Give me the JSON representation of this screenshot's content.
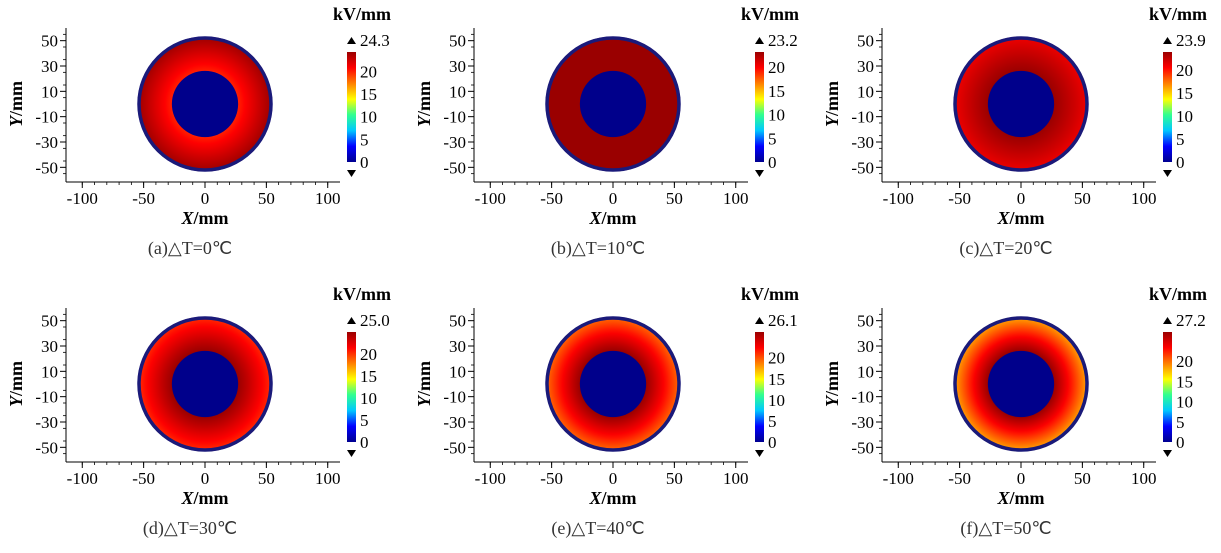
{
  "figure": {
    "unit_label": "kV/mm",
    "x_label": "X/mm",
    "y_label": "Y/mm",
    "x_ticks": [
      "-100",
      "-50",
      "0",
      "50",
      "100"
    ],
    "y_ticks": [
      "50",
      "30",
      "10",
      "-10",
      "-30",
      "-50"
    ],
    "colorbar_ticks": [
      "20",
      "15",
      "10",
      "5",
      "0"
    ],
    "colors": {
      "outline": "#1a1a7a",
      "core": "#00008b",
      "colormap": [
        "#00008f",
        "#0000ff",
        "#00c8ff",
        "#30ff90",
        "#ffff00",
        "#ff8000",
        "#ff0000",
        "#9a0000"
      ]
    }
  },
  "chart_data": [
    {
      "type": "heatmap",
      "panel": "a",
      "caption": "(a)△T=0℃",
      "max_label": "24.3",
      "max_value": 24.3,
      "field": {
        "inner_radius_mm": 27,
        "outer_radius_mm": 55,
        "inner_edge_kV_mm": 20.0,
        "outer_edge_kV_mm": 24.3
      },
      "xlim": [
        -110,
        110
      ],
      "ylim": [
        -60,
        60
      ],
      "colorbar_range": [
        0,
        24.3
      ]
    },
    {
      "type": "heatmap",
      "panel": "b",
      "caption": "(b)△T=10℃",
      "max_label": "23.2",
      "max_value": 23.2,
      "field": {
        "inner_radius_mm": 27,
        "outer_radius_mm": 55,
        "inner_edge_kV_mm": 23.2,
        "outer_edge_kV_mm": 23.2
      },
      "xlim": [
        -110,
        110
      ],
      "ylim": [
        -60,
        60
      ],
      "colorbar_range": [
        0,
        23.2
      ]
    },
    {
      "type": "heatmap",
      "panel": "c",
      "caption": "(c)△T=20℃",
      "max_label": "23.9",
      "max_value": 23.9,
      "field": {
        "inner_radius_mm": 27,
        "outer_radius_mm": 55,
        "inner_edge_kV_mm": 23.9,
        "outer_edge_kV_mm": 21.0
      },
      "xlim": [
        -110,
        110
      ],
      "ylim": [
        -60,
        60
      ],
      "colorbar_range": [
        0,
        23.9
      ]
    },
    {
      "type": "heatmap",
      "panel": "d",
      "caption": "(d)△T=30℃",
      "max_label": "25.0",
      "max_value": 25.0,
      "field": {
        "inner_radius_mm": 27,
        "outer_radius_mm": 55,
        "inner_edge_kV_mm": 25.0,
        "outer_edge_kV_mm": 20.0
      },
      "xlim": [
        -110,
        110
      ],
      "ylim": [
        -60,
        60
      ],
      "colorbar_range": [
        0,
        25.0
      ]
    },
    {
      "type": "heatmap",
      "panel": "e",
      "caption": "(e)△T=40℃",
      "max_label": "26.1",
      "max_value": 26.1,
      "field": {
        "inner_radius_mm": 27,
        "outer_radius_mm": 55,
        "inner_edge_kV_mm": 26.1,
        "outer_edge_kV_mm": 19.0
      },
      "xlim": [
        -110,
        110
      ],
      "ylim": [
        -60,
        60
      ],
      "colorbar_range": [
        0,
        26.1
      ]
    },
    {
      "type": "heatmap",
      "panel": "f",
      "caption": "(f)△T=50℃",
      "max_label": "27.2",
      "max_value": 27.2,
      "field": {
        "inner_radius_mm": 27,
        "outer_radius_mm": 55,
        "inner_edge_kV_mm": 27.2,
        "outer_edge_kV_mm": 18.0
      },
      "xlim": [
        -110,
        110
      ],
      "ylim": [
        -60,
        60
      ],
      "colorbar_range": [
        0,
        27.2
      ]
    }
  ]
}
